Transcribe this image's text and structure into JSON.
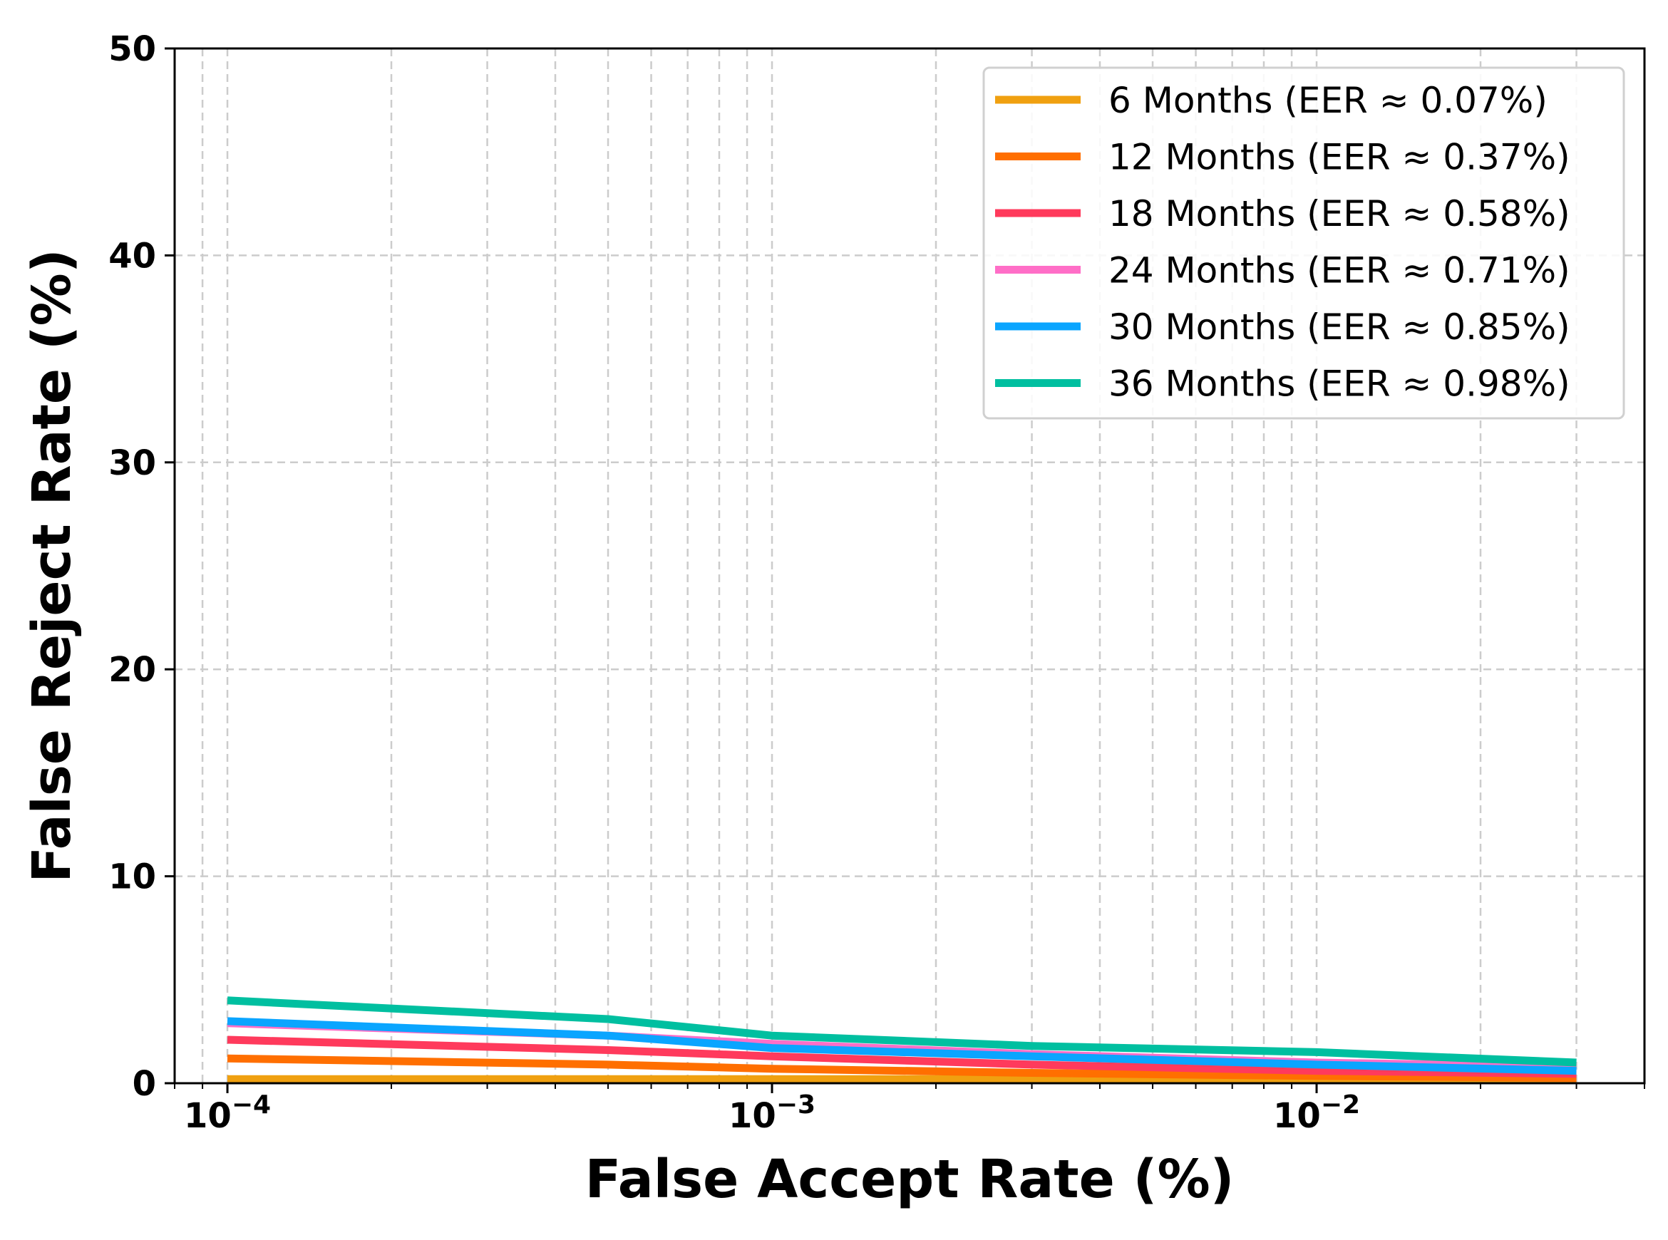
{
  "chart_data": {
    "type": "line",
    "xscale": "log",
    "xlabel": "False Accept Rate (%)",
    "ylabel": "False Reject Rate (%)",
    "xlim": [
      8e-05,
      0.04
    ],
    "ylim": [
      0,
      50
    ],
    "grid": true,
    "legend_position": "top-right",
    "x_ticks": [
      {
        "value": 0.0001,
        "base": "10",
        "exp": "−4"
      },
      {
        "value": 0.001,
        "base": "10",
        "exp": "−3"
      },
      {
        "value": 0.01,
        "base": "10",
        "exp": "−2"
      }
    ],
    "y_ticks": [
      "0",
      "10",
      "20",
      "30",
      "40",
      "50"
    ],
    "x": [
      0.0001,
      0.0005,
      0.001,
      0.003,
      0.01,
      0.03
    ],
    "series": [
      {
        "name": "6 Months (EER ≈ 0.07%)",
        "color": "#f0a010",
        "values": [
          0.2,
          0.2,
          0.2,
          0.2,
          0.2,
          0.15
        ]
      },
      {
        "name": "12 Months (EER ≈ 0.37%)",
        "color": "#ff6f00",
        "values": [
          1.2,
          0.9,
          0.7,
          0.5,
          0.35,
          0.25
        ]
      },
      {
        "name": "18 Months (EER ≈ 0.58%)",
        "color": "#ff3a5c",
        "values": [
          2.1,
          1.6,
          1.3,
          0.9,
          0.6,
          0.45
        ]
      },
      {
        "name": "24 Months (EER ≈ 0.71%)",
        "color": "#ff6ec7",
        "values": [
          2.9,
          2.3,
          1.9,
          1.4,
          1.0,
          0.8
        ]
      },
      {
        "name": "30 Months (EER ≈ 0.85%)",
        "color": "#0aa5ff",
        "values": [
          3.0,
          2.3,
          1.7,
          1.3,
          0.9,
          0.6
        ]
      },
      {
        "name": "36 Months (EER ≈ 0.98%)",
        "color": "#00bfa0",
        "values": [
          4.0,
          3.1,
          2.3,
          1.8,
          1.5,
          1.0
        ]
      }
    ]
  }
}
